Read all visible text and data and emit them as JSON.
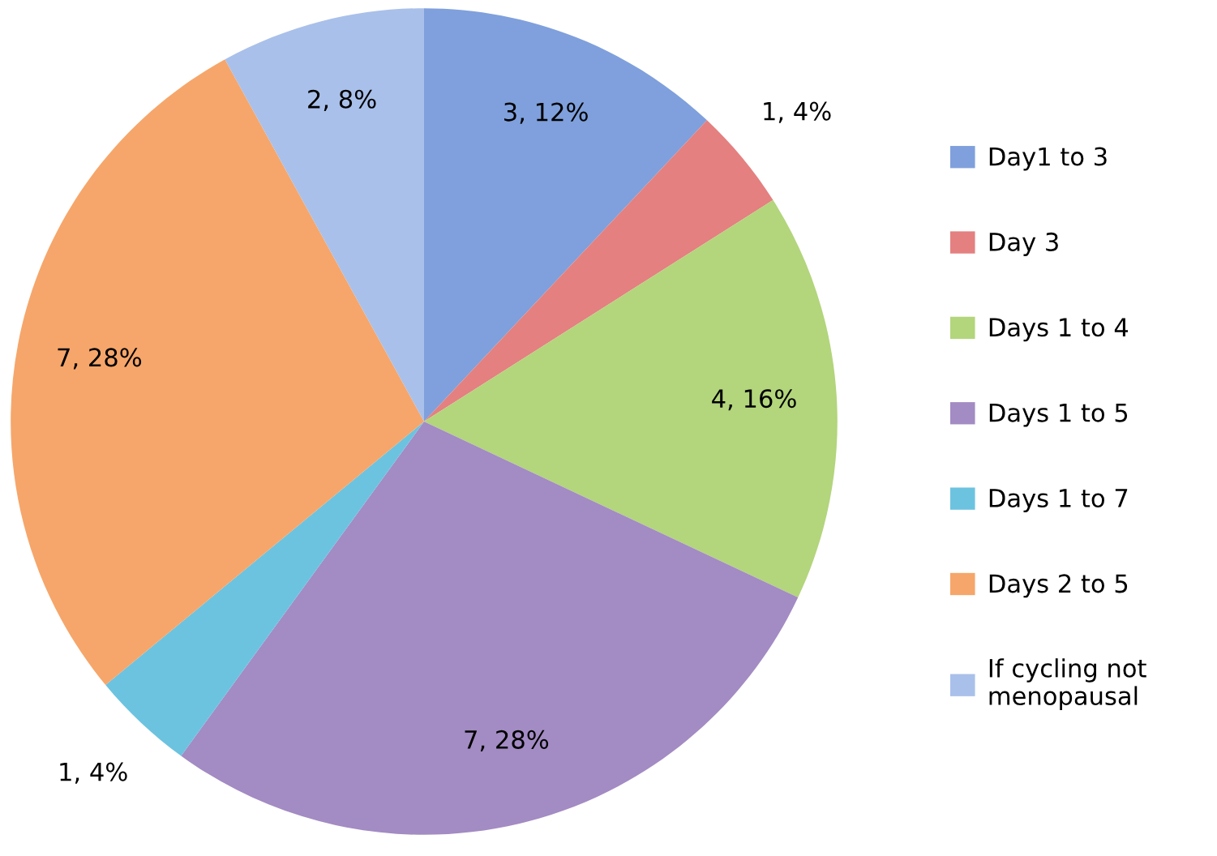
{
  "chart_data": {
    "type": "pie",
    "categories": [
      "Day1 to 3",
      "Day 3",
      "Days 1 to 4",
      "Days 1 to 5",
      "Days 1 to 7",
      "Days 2 to 5",
      "If cycling not menopausal"
    ],
    "values": [
      3,
      1,
      4,
      7,
      1,
      7,
      2
    ],
    "value_labels": [
      "3, 12%",
      "1, 4%",
      "4, 16%",
      "7, 28%",
      "1, 4%",
      "7, 28%",
      "2, 8%"
    ],
    "colors": [
      "#7fa0dc",
      "#e48080",
      "#b3d57c",
      "#a38bc3",
      "#6cc3e0",
      "#f6a66a",
      "#a9c0ea"
    ],
    "legend": "right"
  }
}
